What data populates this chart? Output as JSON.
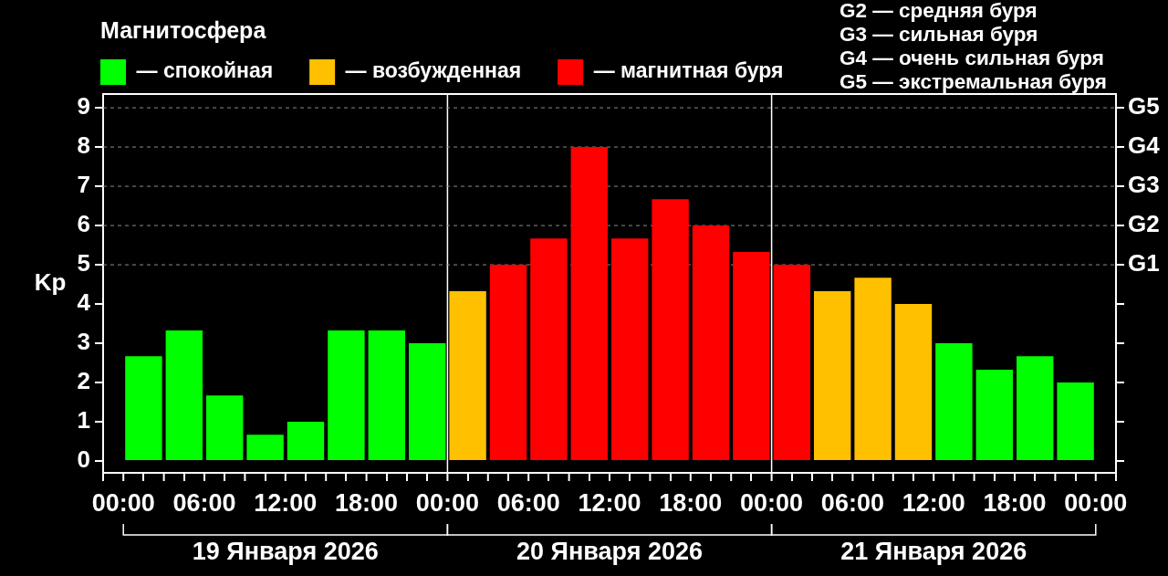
{
  "chart_data": {
    "type": "bar",
    "legend_title": "Магнитосфера",
    "ylabel": "Kp",
    "legend": "top left",
    "x": [
      "2026-01-19T01:30",
      "2026-01-19T04:30",
      "2026-01-19T07:30",
      "2026-01-19T10:30",
      "2026-01-19T13:30",
      "2026-01-19T16:30",
      "2026-01-19T19:30",
      "2026-01-19T22:30",
      "2026-01-20T01:30",
      "2026-01-20T04:30",
      "2026-01-20T07:30",
      "2026-01-20T10:30",
      "2026-01-20T13:30",
      "2026-01-20T16:30",
      "2026-01-20T19:30",
      "2026-01-20T22:30",
      "2026-01-21T01:30",
      "2026-01-21T04:30",
      "2026-01-21T07:30",
      "2026-01-21T10:30",
      "2026-01-21T13:30",
      "2026-01-21T16:30",
      "2026-01-21T19:30",
      "2026-01-21T22:30"
    ],
    "series": [
      {
        "name": "— спокойная",
        "color": "#00ff00",
        "values": [
          2.67,
          3.33,
          1.67,
          0.67,
          1,
          3.33,
          3.33,
          3,
          null,
          null,
          null,
          null,
          null,
          null,
          null,
          null,
          null,
          null,
          null,
          null,
          3,
          2.33,
          2.67,
          2
        ]
      },
      {
        "name": "— возбужденная",
        "color": "#ffc000",
        "values": [
          null,
          null,
          null,
          null,
          null,
          null,
          null,
          null,
          4.33,
          null,
          null,
          null,
          null,
          null,
          null,
          null,
          null,
          4.33,
          4.67,
          4,
          null,
          null,
          null,
          null
        ]
      },
      {
        "name": "— магнитная буря",
        "color": "#ff0000",
        "values": [
          null,
          null,
          null,
          null,
          null,
          null,
          null,
          null,
          null,
          5,
          5.67,
          8,
          5.67,
          6.67,
          6,
          5.33,
          5,
          null,
          null,
          null,
          null,
          null,
          null,
          null
        ]
      }
    ],
    "xlim": [
      "2026-01-19T00:00",
      "2026-01-22T00:00"
    ],
    "xticks": [
      {
        "value": "2026-01-19T00:00",
        "label": "00:00"
      },
      {
        "value": "2026-01-19T03:00",
        "label": null
      },
      {
        "value": "2026-01-19T06:00",
        "label": "06:00"
      },
      {
        "value": "2026-01-19T09:00",
        "label": null
      },
      {
        "value": "2026-01-19T12:00",
        "label": "12:00"
      },
      {
        "value": "2026-01-19T15:00",
        "label": null
      },
      {
        "value": "2026-01-19T18:00",
        "label": "18:00"
      },
      {
        "value": "2026-01-19T21:00",
        "label": null
      },
      {
        "value": "2026-01-20T00:00",
        "label": "00:00"
      },
      {
        "value": "2026-01-20T03:00",
        "label": null
      },
      {
        "value": "2026-01-20T06:00",
        "label": "06:00"
      },
      {
        "value": "2026-01-20T09:00",
        "label": null
      },
      {
        "value": "2026-01-20T12:00",
        "label": "12:00"
      },
      {
        "value": "2026-01-20T15:00",
        "label": null
      },
      {
        "value": "2026-01-20T18:00",
        "label": "18:00"
      },
      {
        "value": "2026-01-20T21:00",
        "label": null
      },
      {
        "value": "2026-01-21T00:00",
        "label": "00:00"
      },
      {
        "value": "2026-01-21T03:00",
        "label": null
      },
      {
        "value": "2026-01-21T06:00",
        "label": "06:00"
      },
      {
        "value": "2026-01-21T09:00",
        "label": null
      },
      {
        "value": "2026-01-21T12:00",
        "label": "12:00"
      },
      {
        "value": "2026-01-21T15:00",
        "label": null
      },
      {
        "value": "2026-01-21T18:00",
        "label": "18:00"
      },
      {
        "value": "2026-01-21T21:00",
        "label": null
      },
      {
        "value": "2026-01-22T00:00",
        "label": "00:00"
      }
    ],
    "ylim": [
      -0.3,
      9.35
    ],
    "yticks": [
      0,
      1,
      2,
      3,
      4,
      5,
      6,
      7,
      8,
      9
    ],
    "ref_lines": [
      {
        "axis": "x",
        "value": "2026-01-20T00:00",
        "color": "#ffffff",
        "line_style": "solid"
      },
      {
        "axis": "x",
        "value": "2026-01-21T00:00",
        "color": "#ffffff",
        "line_style": "solid"
      },
      {
        "axis": "y",
        "value": 5,
        "label": "G1",
        "color": "#8c8c8c",
        "line_style": "dashed"
      },
      {
        "axis": "y",
        "value": 6,
        "label": "G2",
        "color": "#8c8c8c",
        "line_style": "dashed"
      },
      {
        "axis": "y",
        "value": 7,
        "label": "G3",
        "color": "#8c8c8c",
        "line_style": "dashed"
      },
      {
        "axis": "y",
        "value": 8,
        "label": "G4",
        "color": "#8c8c8c",
        "line_style": "dashed"
      },
      {
        "axis": "y",
        "value": 9,
        "label": "G5",
        "color": "#8c8c8c",
        "line_style": "dashed"
      }
    ],
    "annotations": [
      "G2 — средняя буря",
      "G3 — сильная буря",
      "G4 — очень сильная буря",
      "G5 — экстремальная буря",
      "19 Января 2026",
      "20 Января 2026",
      "21 Января 2026"
    ]
  }
}
